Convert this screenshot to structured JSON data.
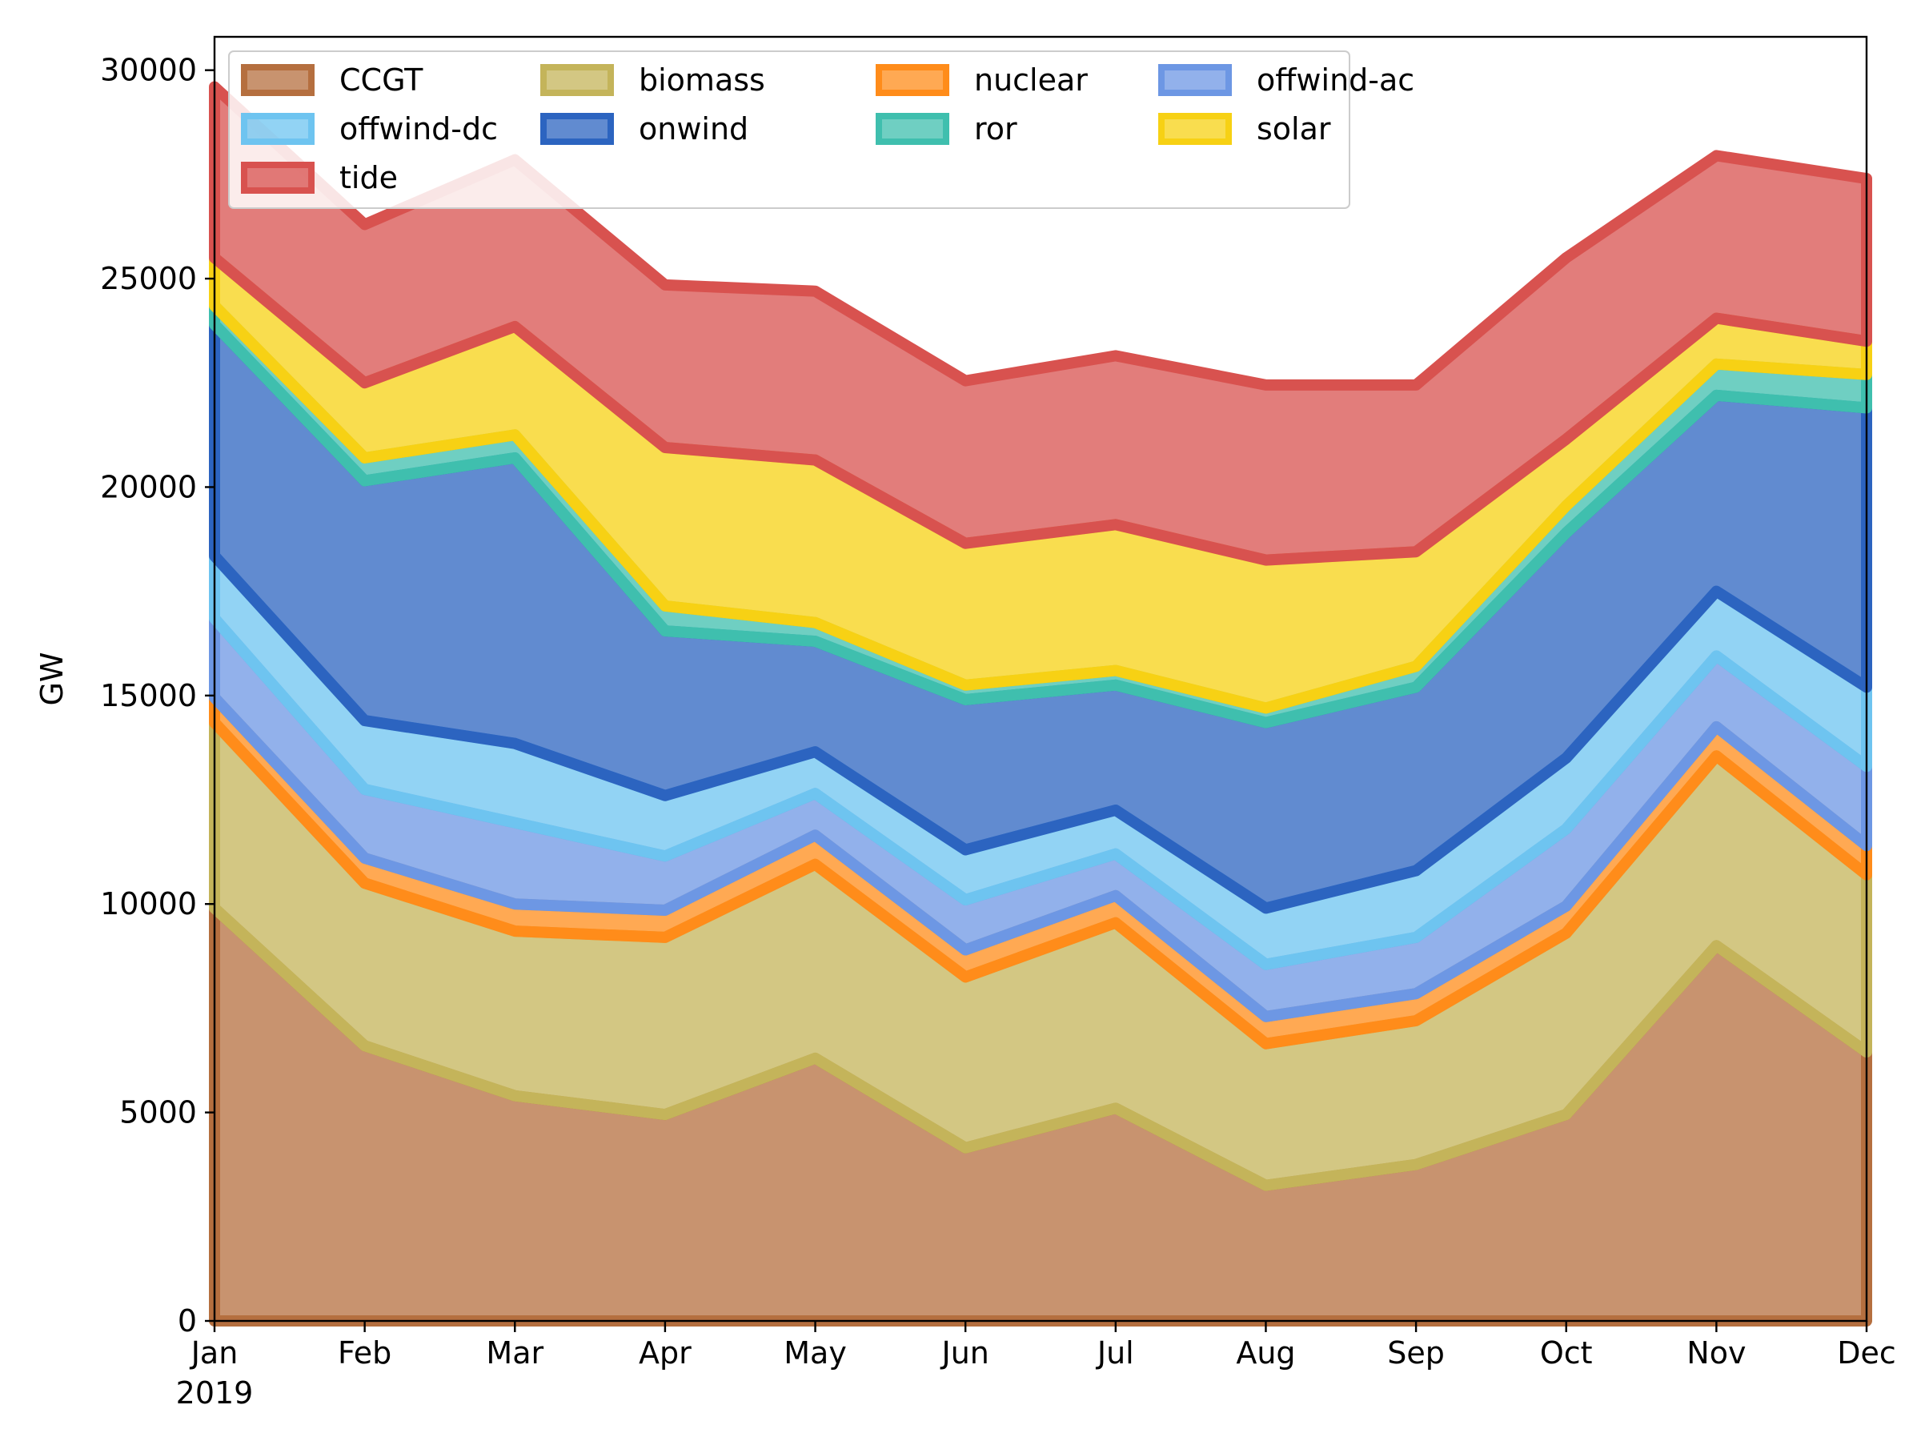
{
  "chart_data": {
    "type": "area",
    "stacked": true,
    "title": "",
    "xlabel": "",
    "ylabel": "GW",
    "x": [
      "Jan",
      "Feb",
      "Mar",
      "Apr",
      "May",
      "Jun",
      "Jul",
      "Aug",
      "Sep",
      "Oct",
      "Nov",
      "Dec"
    ],
    "x_tick_sublabel": "2019",
    "ylim": [
      0,
      30800
    ],
    "yticks": [
      0,
      5000,
      10000,
      15000,
      20000,
      25000,
      30000
    ],
    "grid": false,
    "legend_position": "top-left",
    "legend_columns": 4,
    "series": [
      {
        "name": "CCGT",
        "color": "#b56f3f",
        "values": [
          9900,
          6600,
          5400,
          4950,
          6300,
          4150,
          5100,
          3250,
          3750,
          4950,
          9000,
          6450
        ]
      },
      {
        "name": "biomass",
        "color": "#c4b45a",
        "values": [
          4450,
          3900,
          3950,
          4250,
          4650,
          4100,
          4450,
          3400,
          3450,
          4350,
          4550,
          4250
        ]
      },
      {
        "name": "nuclear",
        "color": "#ff8c1a",
        "values": [
          600,
          600,
          650,
          650,
          700,
          650,
          650,
          650,
          650,
          650,
          700,
          700
        ]
      },
      {
        "name": "offwind-ac",
        "color": "#6d97e4",
        "values": [
          1900,
          1650,
          1950,
          1300,
          1000,
          1200,
          1000,
          1250,
          1350,
          1850,
          1700,
          1900
        ]
      },
      {
        "name": "offwind-dc",
        "color": "#6ec4f0",
        "values": [
          1500,
          1650,
          1900,
          1450,
          1000,
          1200,
          1050,
          1350,
          1600,
          1700,
          1550,
          1900
        ]
      },
      {
        "name": "onwind",
        "color": "#2c64c0",
        "values": [
          5550,
          5750,
          6850,
          3950,
          2650,
          3600,
          3000,
          4450,
          4400,
          5400,
          4700,
          6700
        ]
      },
      {
        "name": "ror",
        "color": "#3fbfae",
        "values": [
          450,
          550,
          550,
          600,
          450,
          350,
          350,
          350,
          500,
          650,
          750,
          800
        ]
      },
      {
        "name": "solar",
        "color": "#f7d114",
        "values": [
          1150,
          1800,
          2600,
          3800,
          3900,
          3400,
          3500,
          3550,
          2750,
          1600,
          1100,
          800
        ]
      },
      {
        "name": "tide",
        "color": "#d8524f",
        "values": [
          4100,
          3800,
          4000,
          3900,
          4050,
          3900,
          4050,
          4200,
          4000,
          4350,
          3900,
          3900
        ]
      }
    ]
  }
}
